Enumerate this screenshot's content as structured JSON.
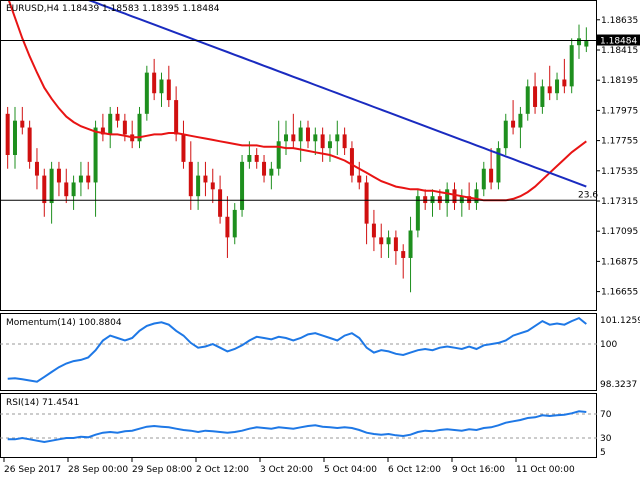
{
  "symbol_header": "EURUSD,H4  1.18439 1.18583 1.18395 1.18484",
  "price_axis": [
    "1.18635",
    "1.18415",
    "1.18195",
    "1.17975",
    "1.17755",
    "1.17535",
    "1.17315",
    "1.17095",
    "1.16875",
    "1.16655"
  ],
  "current_price_label": "1.18484",
  "fib_label": "23.6",
  "momentum_label": "Momentum(14) 100.8804",
  "momentum_axis": [
    "101.1259",
    "100",
    "98.3237"
  ],
  "rsi_label": "RSI(14) 71.4541",
  "rsi_axis": [
    "70",
    "30",
    "5"
  ],
  "time_axis": [
    "26 Sep 2017",
    "28 Sep 00:00",
    "29 Sep 08:00",
    "2 Oct 12:00",
    "3 Oct 20:00",
    "5 Oct 04:00",
    "6 Oct 12:00",
    "9 Oct 16:00",
    "11 Oct 00:00"
  ],
  "colors": {
    "bull": "#1e8f1e",
    "bear": "#d01010",
    "ma_fast": "#e81414",
    "ma_slow": "#1a2bc0",
    "indicator": "#1e78e6"
  },
  "chart_data": {
    "type": "candlestick",
    "price_ylim": [
      1.1655,
      1.1875
    ],
    "candles": [
      [
        1.1795,
        1.18,
        1.1755,
        1.1765
      ],
      [
        1.1765,
        1.18,
        1.1755,
        1.179
      ],
      [
        1.179,
        1.18,
        1.178,
        1.1785
      ],
      [
        1.1785,
        1.179,
        1.1755,
        1.176
      ],
      [
        1.176,
        1.177,
        1.174,
        1.175
      ],
      [
        1.175,
        1.1755,
        1.172,
        1.173
      ],
      [
        1.173,
        1.176,
        1.1715,
        1.1755
      ],
      [
        1.1755,
        1.176,
        1.1735,
        1.1745
      ],
      [
        1.1745,
        1.1755,
        1.173,
        1.1735
      ],
      [
        1.1735,
        1.175,
        1.1725,
        1.1745
      ],
      [
        1.1745,
        1.176,
        1.1735,
        1.175
      ],
      [
        1.175,
        1.176,
        1.174,
        1.1745
      ],
      [
        1.1745,
        1.179,
        1.172,
        1.1785
      ],
      [
        1.1785,
        1.1795,
        1.1775,
        1.178
      ],
      [
        1.178,
        1.18,
        1.177,
        1.1795
      ],
      [
        1.1795,
        1.18,
        1.1785,
        1.179
      ],
      [
        1.179,
        1.1795,
        1.1775,
        1.178
      ],
      [
        1.178,
        1.179,
        1.177,
        1.1775
      ],
      [
        1.1775,
        1.18,
        1.177,
        1.1795
      ],
      [
        1.1795,
        1.183,
        1.179,
        1.1825
      ],
      [
        1.1825,
        1.1835,
        1.1805,
        1.181
      ],
      [
        1.181,
        1.1825,
        1.18,
        1.182
      ],
      [
        1.182,
        1.183,
        1.18,
        1.1805
      ],
      [
        1.1805,
        1.1815,
        1.1775,
        1.178
      ],
      [
        1.178,
        1.179,
        1.1755,
        1.176
      ],
      [
        1.176,
        1.1775,
        1.1725,
        1.1735
      ],
      [
        1.1735,
        1.176,
        1.1725,
        1.175
      ],
      [
        1.175,
        1.176,
        1.1735,
        1.1745
      ],
      [
        1.1745,
        1.1755,
        1.173,
        1.174
      ],
      [
        1.174,
        1.175,
        1.1715,
        1.172
      ],
      [
        1.172,
        1.1735,
        1.169,
        1.1705
      ],
      [
        1.1705,
        1.173,
        1.17,
        1.1725
      ],
      [
        1.1725,
        1.1765,
        1.172,
        1.176
      ],
      [
        1.176,
        1.1775,
        1.1755,
        1.1765
      ],
      [
        1.1765,
        1.177,
        1.1755,
        1.176
      ],
      [
        1.176,
        1.1765,
        1.1745,
        1.175
      ],
      [
        1.175,
        1.176,
        1.174,
        1.1755
      ],
      [
        1.1755,
        1.179,
        1.175,
        1.1775
      ],
      [
        1.1775,
        1.179,
        1.1765,
        1.178
      ],
      [
        1.178,
        1.1795,
        1.177,
        1.1775
      ],
      [
        1.1775,
        1.179,
        1.176,
        1.1785
      ],
      [
        1.1785,
        1.179,
        1.177,
        1.1775
      ],
      [
        1.1775,
        1.1785,
        1.1765,
        1.178
      ],
      [
        1.178,
        1.1785,
        1.176,
        1.177
      ],
      [
        1.177,
        1.178,
        1.176,
        1.1775
      ],
      [
        1.1775,
        1.179,
        1.1765,
        1.178
      ],
      [
        1.178,
        1.1785,
        1.1765,
        1.177
      ],
      [
        1.177,
        1.1775,
        1.1745,
        1.175
      ],
      [
        1.175,
        1.176,
        1.174,
        1.1745
      ],
      [
        1.1745,
        1.175,
        1.17,
        1.1715
      ],
      [
        1.1715,
        1.1725,
        1.1695,
        1.1705
      ],
      [
        1.1705,
        1.1715,
        1.169,
        1.17
      ],
      [
        1.17,
        1.171,
        1.169,
        1.1705
      ],
      [
        1.1705,
        1.171,
        1.1685,
        1.1695
      ],
      [
        1.1695,
        1.17,
        1.1675,
        1.169
      ],
      [
        1.169,
        1.172,
        1.1665,
        1.171
      ],
      [
        1.171,
        1.174,
        1.1705,
        1.1735
      ],
      [
        1.1735,
        1.174,
        1.1725,
        1.173
      ],
      [
        1.173,
        1.174,
        1.172,
        1.1735
      ],
      [
        1.1735,
        1.174,
        1.1725,
        1.173
      ],
      [
        1.173,
        1.1745,
        1.172,
        1.174
      ],
      [
        1.174,
        1.1745,
        1.1725,
        1.173
      ],
      [
        1.173,
        1.174,
        1.172,
        1.1735
      ],
      [
        1.1735,
        1.1745,
        1.1725,
        1.173
      ],
      [
        1.173,
        1.1745,
        1.1725,
        1.174
      ],
      [
        1.174,
        1.176,
        1.1735,
        1.1755
      ],
      [
        1.1755,
        1.177,
        1.174,
        1.1745
      ],
      [
        1.1745,
        1.1775,
        1.174,
        1.177
      ],
      [
        1.177,
        1.1795,
        1.1765,
        1.179
      ],
      [
        1.179,
        1.1805,
        1.178,
        1.1785
      ],
      [
        1.1785,
        1.18,
        1.177,
        1.1795
      ],
      [
        1.1795,
        1.182,
        1.179,
        1.1815
      ],
      [
        1.1815,
        1.1825,
        1.1795,
        1.18
      ],
      [
        1.18,
        1.182,
        1.1795,
        1.1815
      ],
      [
        1.1815,
        1.183,
        1.1805,
        1.181
      ],
      [
        1.181,
        1.1825,
        1.1805,
        1.182
      ],
      [
        1.182,
        1.1835,
        1.181,
        1.1815
      ],
      [
        1.1815,
        1.185,
        1.181,
        1.1845
      ],
      [
        1.1845,
        1.186,
        1.1835,
        1.185
      ],
      [
        1.1844,
        1.1858,
        1.184,
        1.1848
      ]
    ],
    "ma_fast": [
      1.188,
      1.1865,
      1.185,
      1.1837,
      1.1825,
      1.1814,
      1.1806,
      1.1799,
      1.1793,
      1.1789,
      1.1786,
      1.1784,
      1.1782,
      1.1781,
      1.178,
      1.178,
      1.1779,
      1.1778,
      1.1778,
      1.1779,
      1.178,
      1.178,
      1.1781,
      1.1781,
      1.178,
      1.1779,
      1.1778,
      1.1777,
      1.1776,
      1.1775,
      1.1774,
      1.1773,
      1.1772,
      1.1772,
      1.1772,
      1.1771,
      1.1771,
      1.1771,
      1.177,
      1.177,
      1.1769,
      1.1768,
      1.1767,
      1.1766,
      1.1765,
      1.1763,
      1.1761,
      1.1758,
      1.1755,
      1.1752,
      1.1749,
      1.1746,
      1.1744,
      1.1742,
      1.1741,
      1.174,
      1.174,
      1.1739,
      1.1739,
      1.1738,
      1.1737,
      1.1736,
      1.1735,
      1.1734,
      1.1733,
      1.1732,
      1.1732,
      1.1732,
      1.1732,
      1.1733,
      1.1735,
      1.1738,
      1.1742,
      1.1747,
      1.1752,
      1.1757,
      1.1762,
      1.1767,
      1.1771,
      1.1775
    ],
    "ma_slow": [
      1.19,
      1.1898,
      1.1896,
      1.1894,
      1.1892,
      1.189,
      1.1888,
      1.1886,
      1.1884,
      1.1882,
      1.188,
      1.1878,
      1.1876,
      1.1874,
      1.1872,
      1.187,
      1.1868,
      1.1866,
      1.1864,
      1.1862,
      1.186,
      1.1858,
      1.1856,
      1.1854,
      1.1852,
      1.185,
      1.1848,
      1.1846,
      1.1844,
      1.1842,
      1.184,
      1.1838,
      1.1836,
      1.1834,
      1.1832,
      1.183,
      1.1828,
      1.1826,
      1.1824,
      1.1822,
      1.182,
      1.1818,
      1.1816,
      1.1814,
      1.1812,
      1.181,
      1.1808,
      1.1806,
      1.1804,
      1.1802,
      1.18,
      1.1798,
      1.1796,
      1.1794,
      1.1792,
      1.179,
      1.1788,
      1.1786,
      1.1784,
      1.1782,
      1.178,
      1.1778,
      1.1776,
      1.1774,
      1.1772,
      1.177,
      1.1768,
      1.1766,
      1.1764,
      1.1762,
      1.176,
      1.1758,
      1.1756,
      1.1754,
      1.1752,
      1.175,
      1.1748,
      1.1746,
      1.1744,
      1.1742
    ],
    "current_price": 1.18484,
    "fib_level": 1.1732,
    "momentum": {
      "ylim": [
        98.3237,
        101.1259
      ],
      "values": [
        98.62,
        98.64,
        98.6,
        98.55,
        98.5,
        98.7,
        98.9,
        99.1,
        99.25,
        99.35,
        99.4,
        99.5,
        99.8,
        100.2,
        100.4,
        100.3,
        100.2,
        100.3,
        100.6,
        100.8,
        100.9,
        100.95,
        100.85,
        100.6,
        100.4,
        100.1,
        99.9,
        99.95,
        100.05,
        99.9,
        99.75,
        99.85,
        100.0,
        100.2,
        100.35,
        100.3,
        100.25,
        100.35,
        100.3,
        100.2,
        100.3,
        100.45,
        100.5,
        100.4,
        100.3,
        100.2,
        100.4,
        100.5,
        100.3,
        99.9,
        99.7,
        99.8,
        99.75,
        99.65,
        99.6,
        99.7,
        99.8,
        99.85,
        99.8,
        99.9,
        99.95,
        99.9,
        99.85,
        99.95,
        99.85,
        100.0,
        100.05,
        100.1,
        100.2,
        100.4,
        100.5,
        100.6,
        100.8,
        101.0,
        100.85,
        100.9,
        100.85,
        101.0,
        101.12,
        100.88
      ]
    },
    "rsi": {
      "ylim": [
        5,
        95
      ],
      "levels": [
        70,
        30
      ],
      "values": [
        30,
        30,
        32,
        30,
        28,
        26,
        28,
        30,
        32,
        32,
        34,
        33,
        37,
        40,
        41,
        40,
        42,
        43,
        46,
        49,
        50,
        49,
        48,
        46,
        44,
        43,
        41,
        43,
        42,
        41,
        40,
        41,
        43,
        46,
        48,
        47,
        46,
        48,
        47,
        46,
        48,
        50,
        51,
        49,
        48,
        47,
        48,
        47,
        44,
        40,
        38,
        37,
        38,
        36,
        35,
        37,
        41,
        43,
        42,
        44,
        45,
        44,
        43,
        45,
        44,
        47,
        48,
        51,
        55,
        57,
        59,
        62,
        63,
        66,
        65,
        66,
        67,
        69,
        72,
        71
      ]
    }
  }
}
